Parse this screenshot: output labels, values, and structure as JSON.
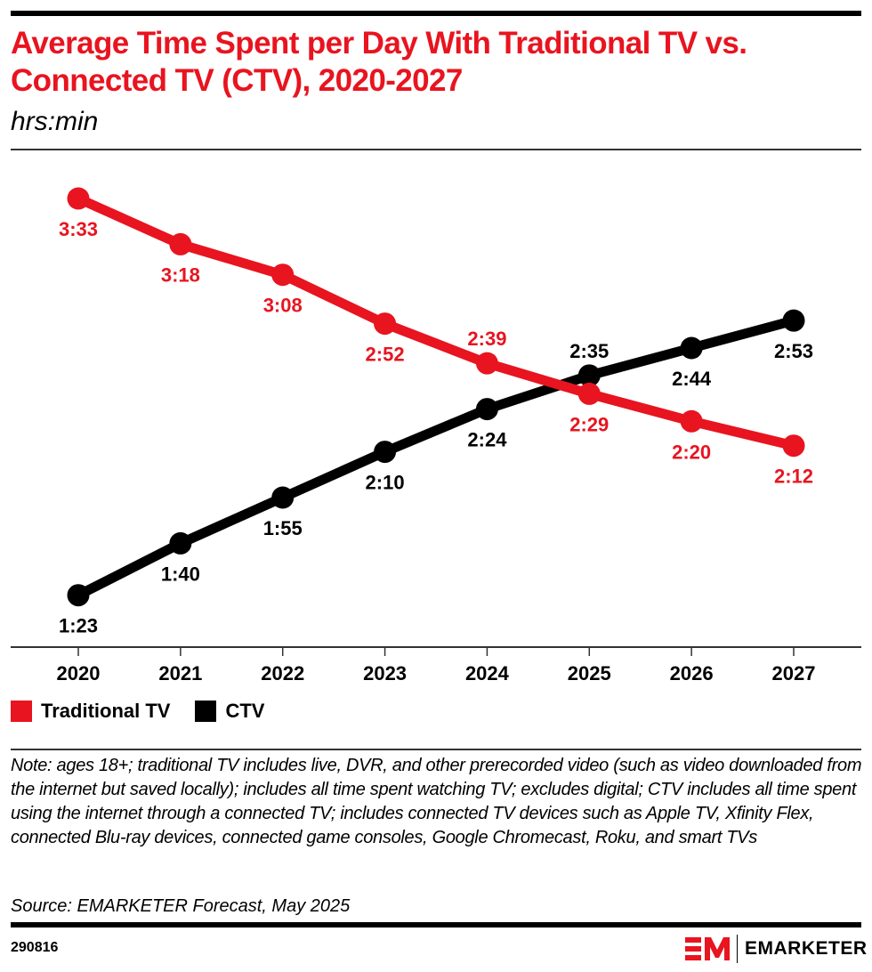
{
  "header": {
    "title": "Average Time Spent per Day With Traditional TV vs. Connected TV (CTV), 2020-2027",
    "subtitle": "hrs:min"
  },
  "colors": {
    "traditional_tv": "#e8141f",
    "ctv": "#000000",
    "title": "#e8141f"
  },
  "legend": [
    {
      "label": "Traditional TV",
      "color": "#e8141f"
    },
    {
      "label": "CTV",
      "color": "#000000"
    }
  ],
  "chart_data": {
    "type": "line",
    "title": "Average Time Spent per Day With Traditional TV vs. Connected TV (CTV), 2020-2027",
    "subtitle": "hrs:min",
    "xlabel": "",
    "ylabel": "",
    "x": [
      "2020",
      "2021",
      "2022",
      "2023",
      "2024",
      "2025",
      "2026",
      "2027"
    ],
    "ylim_minutes": [
      66,
      227
    ],
    "grid": false,
    "legend_position": "bottom-left",
    "series": [
      {
        "name": "Traditional TV",
        "color": "#e8141f",
        "values_minutes": [
          213,
          198,
          188,
          172,
          159,
          149,
          140,
          132
        ],
        "labels": [
          "3:33",
          "3:18",
          "3:08",
          "2:52",
          "2:39",
          "2:29",
          "2:20",
          "2:12"
        ],
        "label_side": [
          "below",
          "below",
          "below",
          "below",
          "above",
          "below",
          "below",
          "below"
        ]
      },
      {
        "name": "CTV",
        "color": "#000000",
        "values_minutes": [
          83,
          100,
          115,
          130,
          144,
          155,
          164,
          173
        ],
        "labels": [
          "1:23",
          "1:40",
          "1:55",
          "2:10",
          "2:24",
          "2:35",
          "2:44",
          "2:53"
        ],
        "label_side": [
          "below",
          "below",
          "below",
          "below",
          "below",
          "above",
          "below",
          "below"
        ]
      }
    ]
  },
  "footer": {
    "note": "Note: ages 18+; traditional TV includes live, DVR, and other prerecorded video (such as video downloaded from the internet but saved locally); includes all time spent watching TV; excludes digital; CTV includes all time spent using the internet through a connected TV; includes connected TV devices such as Apple TV, Xfinity Flex, connected Blu-ray devices, connected game consoles, Google Chromecast, Roku, and smart TVs",
    "source": "Source: EMARKETER Forecast, May 2025",
    "chart_id": "290816",
    "brand": "EMARKETER"
  }
}
